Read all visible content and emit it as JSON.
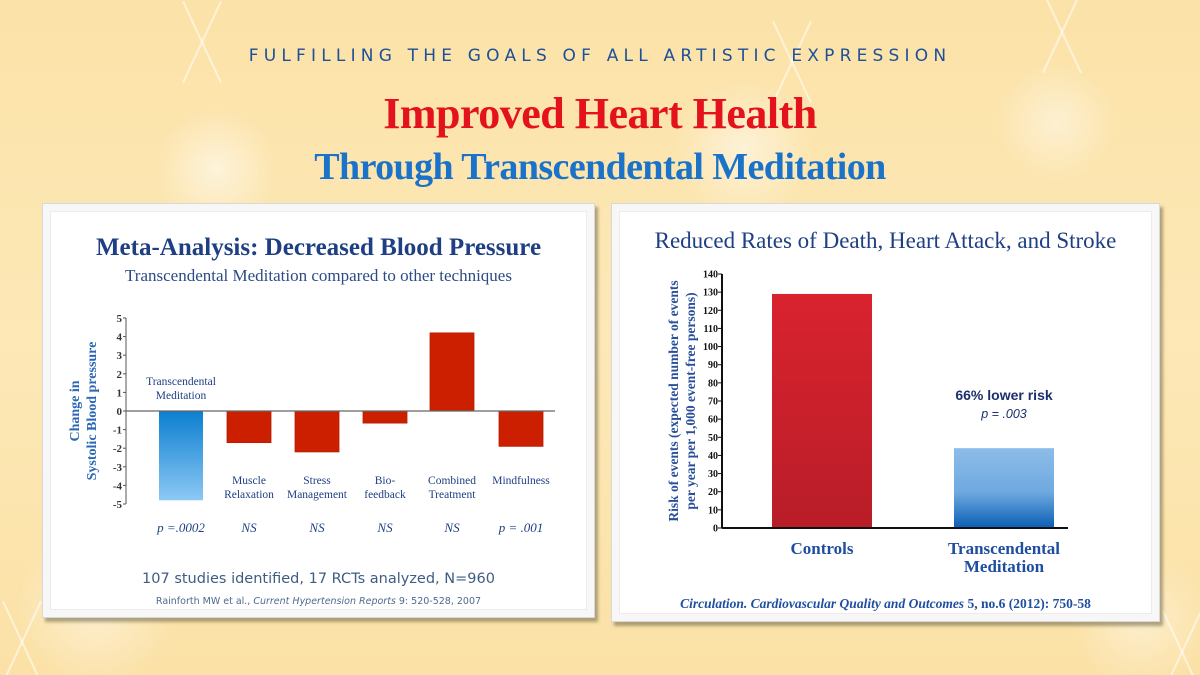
{
  "header": {
    "kicker": "FULFILLING THE GOALS OF ALL ARTISTIC EXPRESSION",
    "title": "Improved Heart Health",
    "subtitle": "Through Transcendental Meditation"
  },
  "colors": {
    "title_red": "#e3121c",
    "subtitle_blue": "#1a73c9",
    "navy": "#1e3f83",
    "bar_red": "#cc1f00",
    "tm_blue_top": "#0b7fcf",
    "tm_blue_bottom": "#8cc8f5",
    "controls_red": "#d0202c",
    "background": "#fde8b6"
  },
  "left_panel": {
    "footnote_main": "107 studies identified, 17 RCTs analyzed, N=960",
    "citation_author": "Rainforth MW et al., ",
    "citation_journal": "Current Hypertension Reports",
    "citation_rest": " 9: 520-528, 2007"
  },
  "right_panel": {
    "annotation_main": "66% lower risk",
    "annotation_p": "p = .003",
    "citation_journal": "Circulation. Cardiovascular Quality and Outcomes",
    "citation_rest": " 5, no.6 (2012): 750-58"
  },
  "chart_data": [
    {
      "type": "bar",
      "title": "Meta-Analysis: Decreased Blood Pressure",
      "subtitle": "Transcendental Meditation compared to other techniques",
      "xlabel": "",
      "ylabel": [
        "Change in",
        "Systolic Blood pressure"
      ],
      "ylim": [
        -5,
        5
      ],
      "yticks": [
        "5",
        "4",
        "3",
        "2",
        "1",
        "0",
        "-1",
        "-2",
        "-3",
        "-4",
        "-5"
      ],
      "grid": false,
      "categories": [
        [
          "Transcendental",
          "Meditation"
        ],
        [
          "Muscle",
          "Relaxation"
        ],
        [
          "Stress",
          "Management"
        ],
        [
          "Bio-",
          "feedback"
        ],
        [
          "Combined",
          "Treatment"
        ],
        [
          "Mindfulness"
        ]
      ],
      "values": [
        -4.8,
        -1.7,
        -2.2,
        -0.65,
        4.2,
        -1.9
      ],
      "significance": [
        "p =.0002",
        "NS",
        "NS",
        "NS",
        "NS",
        "p = .001"
      ],
      "highlight_index": 0
    },
    {
      "type": "bar",
      "title": "Reduced Rates of Death, Heart Attack, and Stroke",
      "xlabel": "",
      "ylabel": [
        "Risk of events (expected number of events",
        "per year per 1,000 event-free persons)"
      ],
      "ylim": [
        0,
        140
      ],
      "yticks": [
        "140",
        "130",
        "120",
        "110",
        "100",
        "90",
        "80",
        "70",
        "60",
        "50",
        "40",
        "30",
        "20",
        "10",
        "0"
      ],
      "grid": false,
      "categories": [
        [
          "Controls"
        ],
        [
          "Transcendental",
          "Meditation"
        ]
      ],
      "values": [
        129,
        44
      ],
      "highlight_index": 1
    }
  ]
}
